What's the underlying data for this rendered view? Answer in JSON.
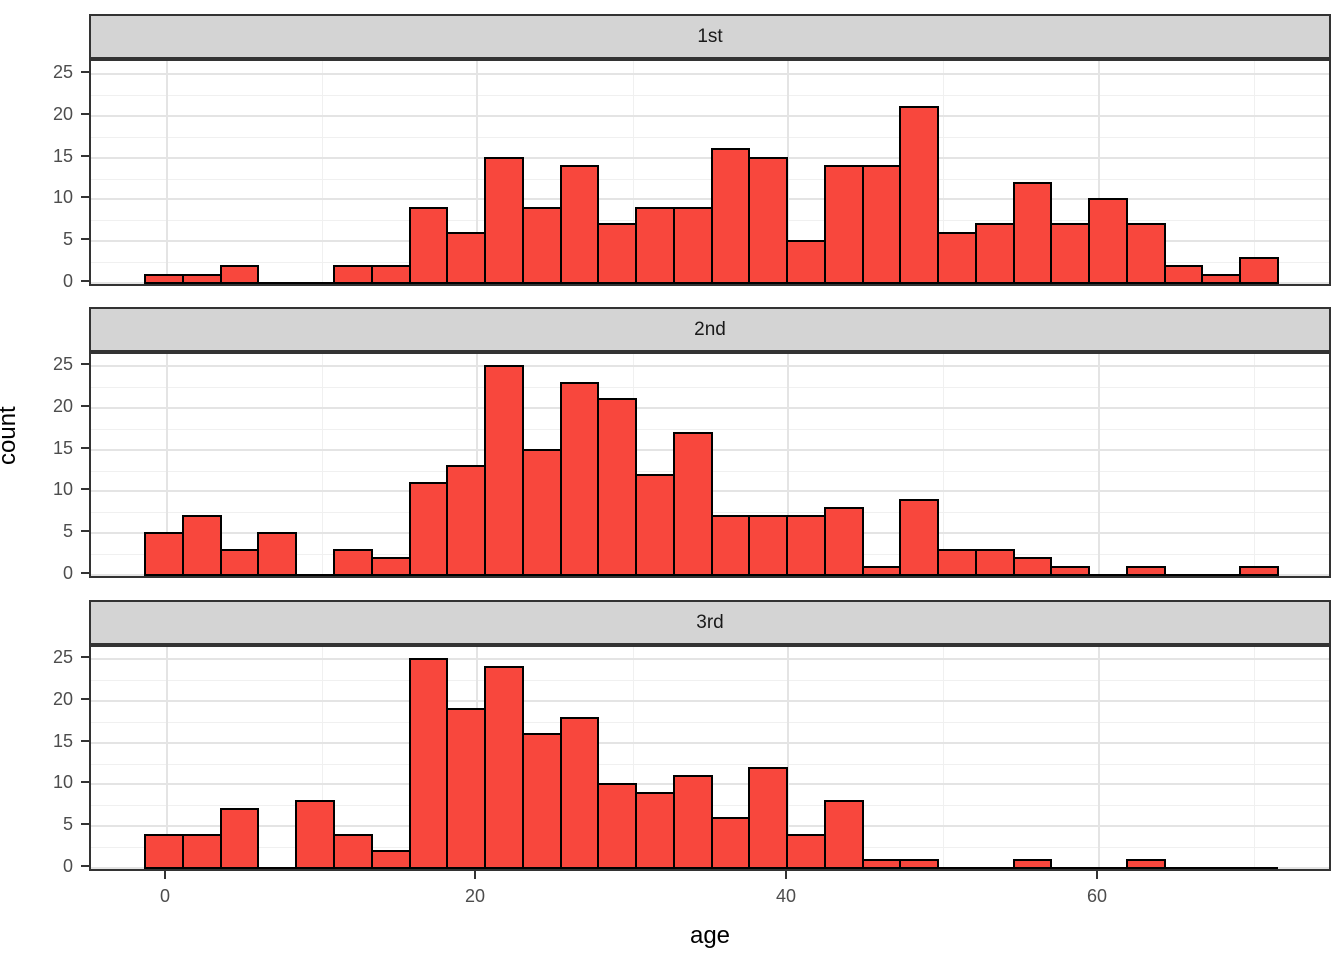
{
  "chart_data": {
    "type": "bar",
    "subtype": "faceted-histogram",
    "title": "",
    "xlabel": "age",
    "ylabel": "count",
    "x_ticks": [
      0,
      20,
      40,
      60
    ],
    "y_ticks": [
      0,
      5,
      10,
      15,
      20,
      25
    ],
    "x_minor_ticks": [
      10,
      30,
      50,
      70
    ],
    "y_minor_ticks": [
      2.5,
      7.5,
      12.5,
      17.5,
      22.5
    ],
    "xlim": [
      -4.97,
      75.1
    ],
    "ylim": [
      -0.6,
      26.6
    ],
    "bin_start": -1.37,
    "bin_width": 2.43,
    "n_bins": 30,
    "grid": "on",
    "legend": "none",
    "facets": [
      {
        "label": "1st",
        "counts": [
          1,
          1,
          2,
          0,
          0,
          2,
          2,
          9,
          6,
          15,
          9,
          14,
          7,
          9,
          9,
          16,
          15,
          5,
          14,
          14,
          21,
          6,
          7,
          12,
          7,
          10,
          7,
          2,
          1,
          3
        ]
      },
      {
        "label": "2nd",
        "counts": [
          5,
          7,
          3,
          5,
          0,
          3,
          2,
          11,
          13,
          25,
          15,
          23,
          21,
          12,
          17,
          7,
          7,
          7,
          8,
          1,
          9,
          3,
          3,
          2,
          1,
          0,
          1,
          0,
          0,
          1
        ]
      },
      {
        "label": "3rd",
        "counts": [
          4,
          4,
          7,
          0,
          8,
          4,
          2,
          25,
          19,
          24,
          16,
          18,
          10,
          9,
          11,
          6,
          12,
          4,
          8,
          1,
          1,
          0,
          0,
          1,
          0,
          0,
          1,
          0,
          0,
          0
        ]
      }
    ],
    "colors": {
      "bar_fill": "#F8473D",
      "bar_stroke": "#000000",
      "strip_background": "#D4D4D4",
      "panel_border": "#333333",
      "grid_major": "#E4E4E4",
      "grid_minor": "#F0F0F0",
      "tick_text": "#4D4D4D",
      "axis_title_text": "#000000",
      "background": "#FFFFFF"
    }
  }
}
